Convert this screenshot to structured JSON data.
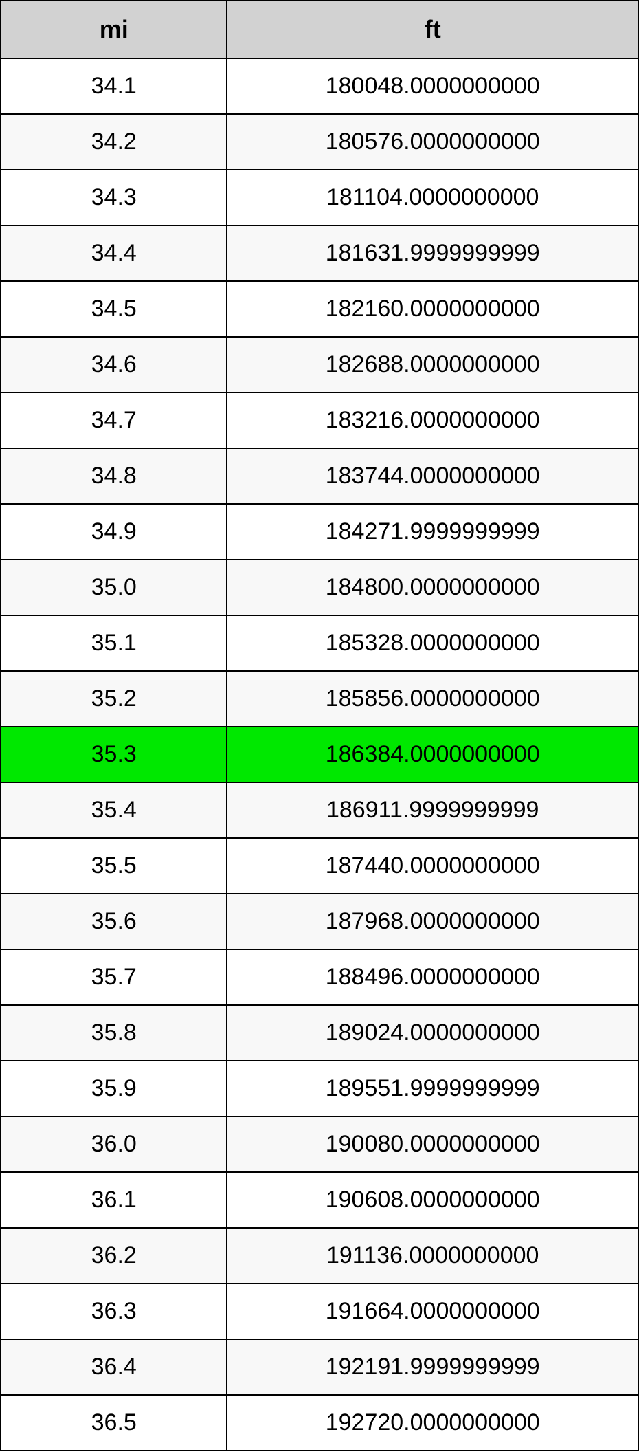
{
  "table": {
    "type": "table",
    "columns": [
      {
        "key": "mi",
        "label": "mi",
        "width_pct": 35.5,
        "align": "center"
      },
      {
        "key": "ft",
        "label": "ft",
        "width_pct": 64.5,
        "align": "center"
      }
    ],
    "header_background": "#d2d2d2",
    "header_fontsize": 36,
    "header_fontweight": "bold",
    "cell_fontsize": 34,
    "border_color": "#000000",
    "border_width": 2,
    "row_background": "#ffffff",
    "row_alt_background": "#f8f8f8",
    "highlight_background": "#00e800",
    "highlight_row_index": 12,
    "text_color": "#000000",
    "rows": [
      {
        "mi": "34.1",
        "ft": "180048.0000000000"
      },
      {
        "mi": "34.2",
        "ft": "180576.0000000000"
      },
      {
        "mi": "34.3",
        "ft": "181104.0000000000"
      },
      {
        "mi": "34.4",
        "ft": "181631.9999999999"
      },
      {
        "mi": "34.5",
        "ft": "182160.0000000000"
      },
      {
        "mi": "34.6",
        "ft": "182688.0000000000"
      },
      {
        "mi": "34.7",
        "ft": "183216.0000000000"
      },
      {
        "mi": "34.8",
        "ft": "183744.0000000000"
      },
      {
        "mi": "34.9",
        "ft": "184271.9999999999"
      },
      {
        "mi": "35.0",
        "ft": "184800.0000000000"
      },
      {
        "mi": "35.1",
        "ft": "185328.0000000000"
      },
      {
        "mi": "35.2",
        "ft": "185856.0000000000"
      },
      {
        "mi": "35.3",
        "ft": "186384.0000000000"
      },
      {
        "mi": "35.4",
        "ft": "186911.9999999999"
      },
      {
        "mi": "35.5",
        "ft": "187440.0000000000"
      },
      {
        "mi": "35.6",
        "ft": "187968.0000000000"
      },
      {
        "mi": "35.7",
        "ft": "188496.0000000000"
      },
      {
        "mi": "35.8",
        "ft": "189024.0000000000"
      },
      {
        "mi": "35.9",
        "ft": "189551.9999999999"
      },
      {
        "mi": "36.0",
        "ft": "190080.0000000000"
      },
      {
        "mi": "36.1",
        "ft": "190608.0000000000"
      },
      {
        "mi": "36.2",
        "ft": "191136.0000000000"
      },
      {
        "mi": "36.3",
        "ft": "191664.0000000000"
      },
      {
        "mi": "36.4",
        "ft": "192191.9999999999"
      },
      {
        "mi": "36.5",
        "ft": "192720.0000000000"
      }
    ]
  }
}
